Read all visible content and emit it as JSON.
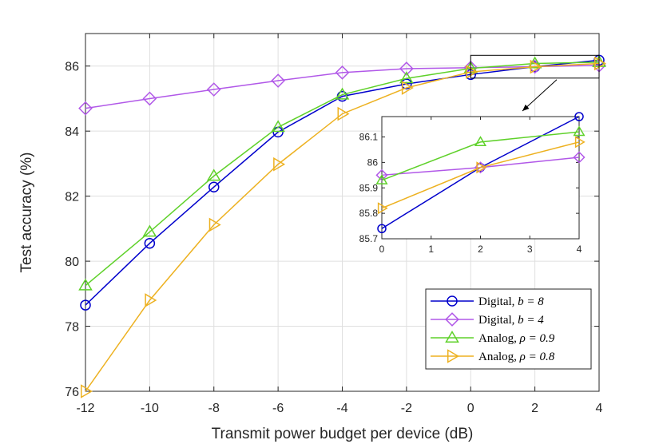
{
  "chart_data": {
    "type": "line",
    "title": "",
    "xlabel": "Transmit power budget per device (dB)",
    "ylabel": "Test accuracy (%)",
    "x": [
      -12,
      -10,
      -8,
      -6,
      -4,
      -2,
      0,
      2,
      4
    ],
    "xlim": [
      -12,
      4
    ],
    "ylim": [
      76,
      87
    ],
    "xticks": [
      -12,
      -10,
      -8,
      -6,
      -4,
      -2,
      0,
      2,
      4
    ],
    "yticks": [
      76,
      78,
      80,
      82,
      84,
      86
    ],
    "xtick_labels": [
      "-12",
      "-10",
      "-8",
      "-6",
      "-4",
      "-2",
      "0",
      "2",
      "4"
    ],
    "ytick_labels": [
      "76",
      "78",
      "80",
      "82",
      "84",
      "86"
    ],
    "grid": true,
    "legend_position": "bottom-right",
    "series": [
      {
        "name": "Digital, b = 8",
        "label_main": "Digital, ",
        "label_math": "b = 8",
        "marker": "circle",
        "color": "#0000cc",
        "values": [
          78.65,
          80.55,
          82.28,
          83.97,
          85.07,
          85.45,
          85.74,
          85.98,
          86.18
        ]
      },
      {
        "name": "Digital, b = 4",
        "label_main": "Digital, ",
        "label_math": "b = 4",
        "marker": "diamond",
        "color": "#b158e8",
        "values": [
          84.7,
          85.0,
          85.28,
          85.55,
          85.8,
          85.92,
          85.95,
          85.98,
          86.02
        ]
      },
      {
        "name": "Analog, ρ = 0.9",
        "label_main": "Analog, ",
        "label_math": "ρ = 0.9",
        "marker": "triangle-up",
        "color": "#5fd12a",
        "values": [
          79.25,
          80.9,
          82.62,
          84.12,
          85.12,
          85.62,
          85.93,
          86.08,
          86.12
        ]
      },
      {
        "name": "Analog, ρ = 0.8",
        "label_main": "Analog, ",
        "label_math": "ρ = 0.8",
        "marker": "triangle-right",
        "color": "#edb120",
        "values": [
          76.0,
          78.8,
          81.12,
          82.98,
          84.53,
          85.33,
          85.82,
          85.98,
          86.08
        ]
      }
    ],
    "inset": {
      "xlim": [
        0,
        4
      ],
      "ylim": [
        85.7,
        86.18
      ],
      "xticks": [
        0,
        1,
        2,
        3,
        4
      ],
      "yticks": [
        85.7,
        85.8,
        85.9,
        86,
        86.1
      ],
      "xtick_labels": [
        "0",
        "1",
        "2",
        "3",
        "4"
      ],
      "ytick_labels": [
        "85.7",
        "85.8",
        "85.9",
        "86",
        "86.1"
      ],
      "grid": false,
      "zoom_region": {
        "x": [
          0,
          4
        ],
        "y": [
          85.63,
          86.33
        ]
      }
    }
  }
}
